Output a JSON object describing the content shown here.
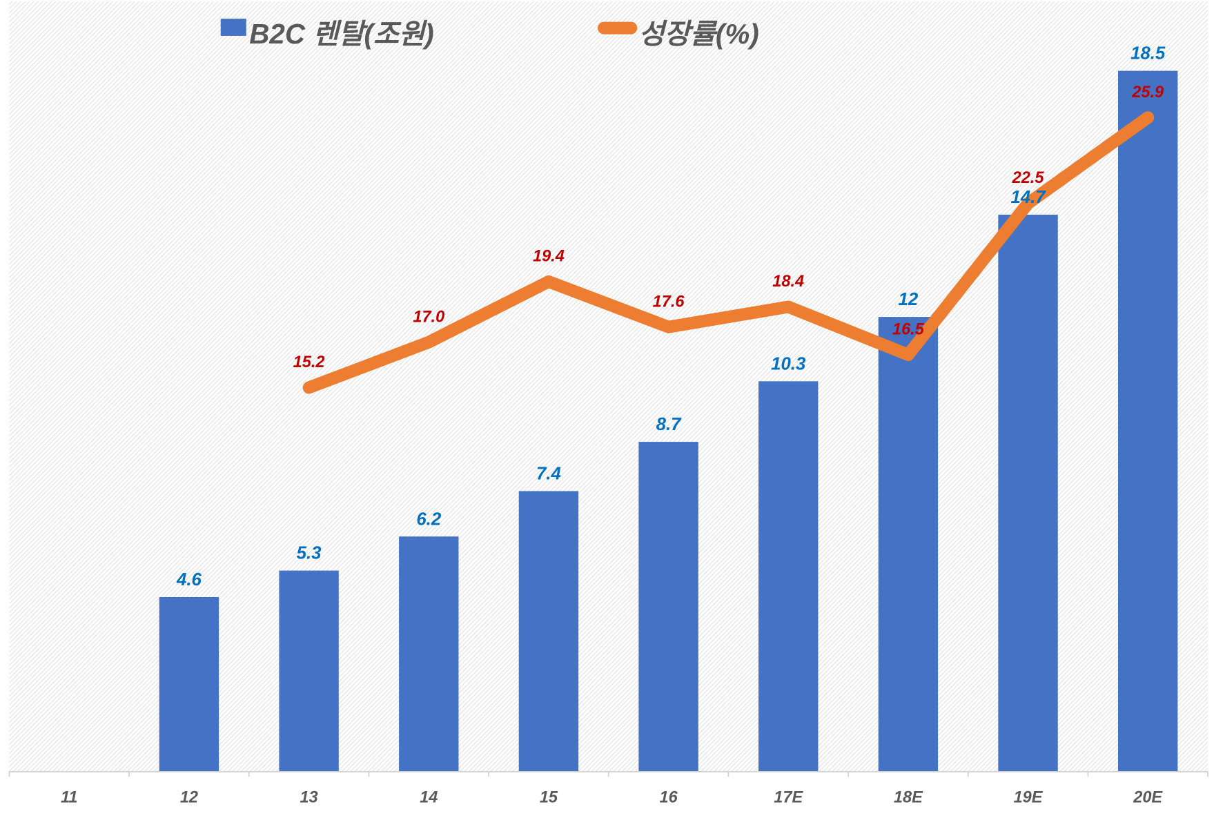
{
  "chart_data": {
    "type": "bar+line",
    "categories": [
      "11",
      "12",
      "13",
      "14",
      "15",
      "16",
      "17E",
      "18E",
      "19E",
      "20E"
    ],
    "series": [
      {
        "name": "B2C 렌탈(조원)",
        "type": "bar",
        "axis": "primary",
        "color": "#4472c4",
        "label_color": "#0070c0",
        "values": [
          null,
          4.6,
          5.3,
          6.2,
          7.4,
          8.7,
          10.3,
          12,
          14.7,
          18.5
        ],
        "labels": [
          "",
          "4.6",
          "5.3",
          "6.2",
          "7.4",
          "8.7",
          "10.3",
          "12",
          "14.7",
          "18.5"
        ]
      },
      {
        "name": "성장률(%)",
        "type": "line",
        "axis": "secondary",
        "color": "#ed7d31",
        "label_color": "#c00000",
        "values": [
          null,
          null,
          15.2,
          17.0,
          19.4,
          17.6,
          18.4,
          16.5,
          22.5,
          25.9
        ],
        "labels": [
          "",
          "",
          "15.2",
          "17.0",
          "19.4",
          "17.6",
          "18.4",
          "16.5",
          "22.5",
          "25.9"
        ]
      }
    ],
    "ylim_primary": [
      0,
      20
    ],
    "ylim_secondary": [
      0,
      30
    ],
    "legend": "top",
    "grid": false,
    "axes_visible": false,
    "background": "diagonal hatch"
  }
}
